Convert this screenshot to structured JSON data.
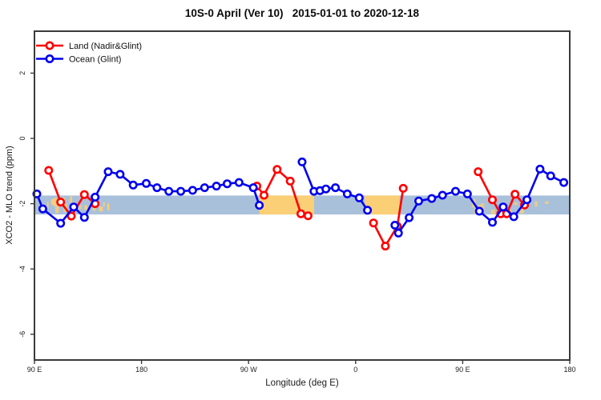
{
  "chart_data": {
    "type": "line",
    "title": "10S-0 April (Ver 10)   2015-01-01 to 2020-12-18",
    "xlabel": "Longitude (deg E)",
    "ylabel": "XCO2 - MLO trend (ppm)",
    "x_axis_note": "longitude wraps eastward from 90E to 180 (90E=90 ... 540=180)",
    "xlim": [
      90,
      540
    ],
    "ylim": [
      -6.8,
      3.3
    ],
    "grid": false,
    "x_ticks": [
      {
        "lon": 90,
        "label": "90 E"
      },
      {
        "lon": 180,
        "label": "180"
      },
      {
        "lon": 270,
        "label": "90 W"
      },
      {
        "lon": 360,
        "label": "0"
      },
      {
        "lon": 450,
        "label": "90 E"
      },
      {
        "lon": 540,
        "label": "180"
      }
    ],
    "y_ticks": [
      {
        "v": 2,
        "label": "2"
      },
      {
        "v": 0,
        "label": "0"
      },
      {
        "v": -2,
        "label": "-2"
      },
      {
        "v": -4,
        "label": "-4"
      },
      {
        "v": -6,
        "label": "-6"
      }
    ],
    "legend": {
      "position": "top-left",
      "entries": [
        {
          "label": "Land (Nadir&Glint)",
          "color": "#ff0000"
        },
        {
          "label": "Ocean (Glint)",
          "color": "#0000ee"
        }
      ]
    },
    "reference_band": {
      "y_from": -1.75,
      "y_to": -2.33,
      "ocean_color": "#a9c0da",
      "land_color": "#fbcf76",
      "land_solid_lon": [
        [
          279,
          325
        ],
        [
          367.5,
          397
        ]
      ],
      "land_speckled_lon": [
        [
          97,
          152
        ],
        [
          458,
          521
        ]
      ]
    },
    "series": [
      {
        "name": "Land (Nadir&Glint)",
        "color": "#ff0000",
        "segments": [
          [
            [
              102,
              -0.98
            ],
            [
              112,
              -1.95
            ],
            [
              121,
              -2.38
            ],
            [
              132,
              -1.72
            ],
            [
              141,
              -2.0
            ]
          ],
          [
            [
              277,
              -1.46
            ],
            [
              283,
              -1.74
            ],
            [
              294,
              -0.95
            ],
            [
              305,
              -1.31
            ],
            [
              314,
              -2.31
            ],
            [
              320,
              -2.37
            ]
          ],
          [
            [
              375,
              -2.59
            ],
            [
              385,
              -3.3
            ],
            [
              395,
              -2.69
            ],
            [
              400,
              -1.53
            ]
          ],
          [
            [
              463,
              -1.02
            ],
            [
              475,
              -1.88
            ],
            [
              482,
              -2.31
            ],
            [
              487,
              -2.31
            ],
            [
              494,
              -1.71
            ],
            [
              502,
              -2.04
            ]
          ]
        ]
      },
      {
        "name": "Ocean (Glint)",
        "color": "#0000ee",
        "segments": [
          [
            [
              92,
              -1.7
            ],
            [
              97,
              -2.16
            ],
            [
              112,
              -2.6
            ],
            [
              123,
              -2.1
            ],
            [
              132,
              -2.42
            ],
            [
              141,
              -1.8
            ],
            [
              152,
              -1.02
            ],
            [
              162,
              -1.1
            ],
            [
              173,
              -1.43
            ],
            [
              184,
              -1.38
            ],
            [
              193,
              -1.51
            ],
            [
              203,
              -1.62
            ],
            [
              213,
              -1.62
            ],
            [
              223,
              -1.59
            ],
            [
              233,
              -1.51
            ],
            [
              243,
              -1.46
            ],
            [
              252,
              -1.39
            ],
            [
              262,
              -1.35
            ],
            [
              274,
              -1.51
            ],
            [
              279,
              -2.05
            ]
          ],
          [
            [
              315,
              -0.72
            ],
            [
              325,
              -1.62
            ],
            [
              330,
              -1.6
            ],
            [
              335,
              -1.55
            ],
            [
              343,
              -1.51
            ],
            [
              353,
              -1.7
            ],
            [
              363,
              -1.82
            ],
            [
              370,
              -2.2
            ]
          ],
          [
            [
              393,
              -2.66
            ],
            [
              396,
              -2.9
            ],
            [
              405,
              -2.43
            ],
            [
              413,
              -1.92
            ],
            [
              424,
              -1.84
            ],
            [
              433,
              -1.74
            ],
            [
              444,
              -1.62
            ],
            [
              454,
              -1.7
            ],
            [
              464,
              -2.23
            ],
            [
              475,
              -2.57
            ],
            [
              484,
              -2.1
            ],
            [
              493,
              -2.4
            ],
            [
              504,
              -1.88
            ],
            [
              515,
              -0.94
            ],
            [
              524,
              -1.15
            ],
            [
              535,
              -1.35
            ]
          ]
        ]
      }
    ]
  }
}
